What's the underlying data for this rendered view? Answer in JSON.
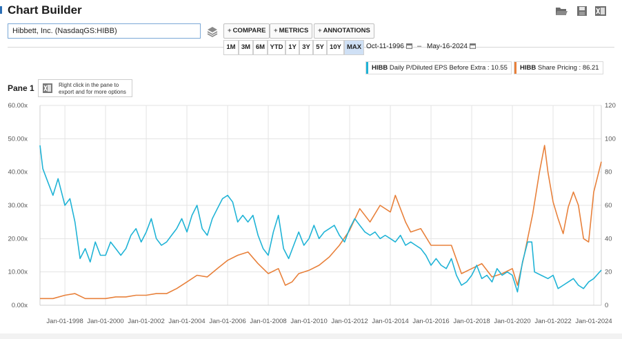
{
  "header": {
    "title": "Chart Builder"
  },
  "icons": {
    "open": "folder-open-icon",
    "save": "save-icon",
    "excel": "excel-icon",
    "layers": "layers-icon"
  },
  "search": {
    "value": "Hibbett, Inc. (NasdaqGS:HIBB)"
  },
  "toolbar": {
    "compare": "COMPARE",
    "metrics": "METRICS",
    "annotations": "ANNOTATIONS"
  },
  "ranges": [
    "1M",
    "3M",
    "6M",
    "YTD",
    "1Y",
    "3Y",
    "5Y",
    "10Y",
    "MAX"
  ],
  "active_range": "MAX",
  "dates": {
    "start": "Oct-11-1996",
    "end": "May-16-2024"
  },
  "legend": [
    {
      "ticker": "HIBB",
      "label": "Daily P/Diluted EPS Before Extra : 10.55",
      "color": "#1fb3d6"
    },
    {
      "ticker": "HIBB",
      "label": "Share Pricing : 86.21",
      "color": "#e8803a"
    }
  ],
  "pane": {
    "title": "Pane 1",
    "hint": "Right click in the pane to export and for more options"
  },
  "chart_data": {
    "type": "line",
    "y_left": {
      "ticks": [
        "60.00x",
        "50.00x",
        "40.00x",
        "30.00x",
        "20.00x",
        "10.00x",
        "0.00x"
      ],
      "range": [
        0,
        60
      ]
    },
    "y_right": {
      "ticks": [
        "120",
        "100",
        "80",
        "60",
        "40",
        "20",
        "0"
      ],
      "range": [
        0,
        120
      ]
    },
    "x_ticks": [
      "Jan-01-1998",
      "Jan-01-2000",
      "Jan-01-2002",
      "Jan-01-2004",
      "Jan-01-2006",
      "Jan-01-2008",
      "Jan-01-2010",
      "Jan-01-2012",
      "Jan-01-2014",
      "Jan-01-2016",
      "Jan-01-2018",
      "Jan-01-2020",
      "Jan-01-2022",
      "Jan-01-2024"
    ],
    "x_range": [
      "1996-10-11",
      "2024-05-16"
    ],
    "grid": true,
    "series": [
      {
        "name": "HIBB Daily P/Diluted EPS Before Extra",
        "axis": "left",
        "color": "#1fb3d6",
        "points": [
          [
            "1996-10-11",
            48
          ],
          [
            "1996-12-01",
            41
          ],
          [
            "1997-03-01",
            37
          ],
          [
            "1997-06-01",
            33
          ],
          [
            "1997-09-01",
            38
          ],
          [
            "1998-01-01",
            30
          ],
          [
            "1998-04-01",
            32
          ],
          [
            "1998-07-01",
            25
          ],
          [
            "1998-10-01",
            14
          ],
          [
            "1999-01-01",
            17
          ],
          [
            "1999-04-01",
            13
          ],
          [
            "1999-07-01",
            19
          ],
          [
            "1999-10-01",
            15
          ],
          [
            "2000-01-01",
            15
          ],
          [
            "2000-04-01",
            19
          ],
          [
            "2000-07-01",
            17
          ],
          [
            "2000-10-01",
            15
          ],
          [
            "2001-01-01",
            17
          ],
          [
            "2001-04-01",
            21
          ],
          [
            "2001-07-01",
            23
          ],
          [
            "2001-10-01",
            19
          ],
          [
            "2002-01-01",
            22
          ],
          [
            "2002-04-01",
            26
          ],
          [
            "2002-07-01",
            20
          ],
          [
            "2002-10-01",
            18
          ],
          [
            "2003-01-01",
            19
          ],
          [
            "2003-04-01",
            21
          ],
          [
            "2003-07-01",
            23
          ],
          [
            "2003-10-01",
            26
          ],
          [
            "2004-01-01",
            22
          ],
          [
            "2004-04-01",
            27
          ],
          [
            "2004-07-01",
            30
          ],
          [
            "2004-10-01",
            23
          ],
          [
            "2005-01-01",
            21
          ],
          [
            "2005-04-01",
            26
          ],
          [
            "2005-07-01",
            29
          ],
          [
            "2005-10-01",
            32
          ],
          [
            "2006-01-01",
            33
          ],
          [
            "2006-04-01",
            31
          ],
          [
            "2006-07-01",
            25
          ],
          [
            "2006-10-01",
            27
          ],
          [
            "2007-01-01",
            25
          ],
          [
            "2007-04-01",
            27
          ],
          [
            "2007-07-01",
            21
          ],
          [
            "2007-10-01",
            17
          ],
          [
            "2008-01-01",
            15
          ],
          [
            "2008-04-01",
            22
          ],
          [
            "2008-07-01",
            27
          ],
          [
            "2008-10-01",
            17
          ],
          [
            "2009-01-01",
            14
          ],
          [
            "2009-04-01",
            18
          ],
          [
            "2009-07-01",
            22
          ],
          [
            "2009-10-01",
            18
          ],
          [
            "2010-01-01",
            20
          ],
          [
            "2010-04-01",
            24
          ],
          [
            "2010-07-01",
            20
          ],
          [
            "2010-10-01",
            22
          ],
          [
            "2011-01-01",
            23
          ],
          [
            "2011-04-01",
            24
          ],
          [
            "2011-07-01",
            21
          ],
          [
            "2011-10-01",
            19
          ],
          [
            "2012-01-01",
            23
          ],
          [
            "2012-04-01",
            26
          ],
          [
            "2012-07-01",
            24
          ],
          [
            "2012-10-01",
            22
          ],
          [
            "2013-01-01",
            21
          ],
          [
            "2013-04-01",
            22
          ],
          [
            "2013-07-01",
            20
          ],
          [
            "2013-10-01",
            21
          ],
          [
            "2014-01-01",
            20
          ],
          [
            "2014-04-01",
            19
          ],
          [
            "2014-07-01",
            21
          ],
          [
            "2014-10-01",
            18
          ],
          [
            "2015-01-01",
            19
          ],
          [
            "2015-04-01",
            18
          ],
          [
            "2015-07-01",
            17
          ],
          [
            "2015-10-01",
            15
          ],
          [
            "2016-01-01",
            12
          ],
          [
            "2016-04-01",
            14
          ],
          [
            "2016-07-01",
            12
          ],
          [
            "2016-10-01",
            11
          ],
          [
            "2017-01-01",
            14
          ],
          [
            "2017-04-01",
            9
          ],
          [
            "2017-07-01",
            6
          ],
          [
            "2017-10-01",
            7
          ],
          [
            "2018-01-01",
            9
          ],
          [
            "2018-04-01",
            12
          ],
          [
            "2018-07-01",
            8
          ],
          [
            "2018-10-01",
            9
          ],
          [
            "2019-01-01",
            7
          ],
          [
            "2019-04-01",
            11
          ],
          [
            "2019-07-01",
            9
          ],
          [
            "2019-10-01",
            10
          ],
          [
            "2020-01-01",
            9
          ],
          [
            "2020-04-01",
            4
          ],
          [
            "2020-07-01",
            13
          ],
          [
            "2020-10-01",
            19
          ],
          [
            "2020-12-15",
            19
          ],
          [
            "2021-02-01",
            10
          ],
          [
            "2021-06-01",
            9
          ],
          [
            "2021-10-01",
            8
          ],
          [
            "2022-01-01",
            9
          ],
          [
            "2022-04-01",
            5
          ],
          [
            "2022-07-01",
            6
          ],
          [
            "2022-10-01",
            7
          ],
          [
            "2023-01-01",
            8
          ],
          [
            "2023-04-01",
            6
          ],
          [
            "2023-07-01",
            5
          ],
          [
            "2023-10-01",
            7
          ],
          [
            "2024-01-01",
            8
          ],
          [
            "2024-05-16",
            10.55
          ]
        ]
      },
      {
        "name": "HIBB Share Pricing",
        "axis": "right",
        "color": "#e8803a",
        "points": [
          [
            "1996-10-11",
            4
          ],
          [
            "1997-06-01",
            4
          ],
          [
            "1998-01-01",
            6
          ],
          [
            "1998-07-01",
            7
          ],
          [
            "1999-01-01",
            4
          ],
          [
            "1999-07-01",
            4
          ],
          [
            "2000-01-01",
            4
          ],
          [
            "2000-07-01",
            5
          ],
          [
            "2001-01-01",
            5
          ],
          [
            "2001-07-01",
            6
          ],
          [
            "2002-01-01",
            6
          ],
          [
            "2002-07-01",
            7
          ],
          [
            "2003-01-01",
            7
          ],
          [
            "2003-07-01",
            10
          ],
          [
            "2004-01-01",
            14
          ],
          [
            "2004-07-01",
            18
          ],
          [
            "2005-01-01",
            17
          ],
          [
            "2005-07-01",
            22
          ],
          [
            "2006-01-01",
            27
          ],
          [
            "2006-07-01",
            30
          ],
          [
            "2007-01-01",
            32
          ],
          [
            "2007-07-01",
            25
          ],
          [
            "2008-01-01",
            19
          ],
          [
            "2008-07-01",
            22
          ],
          [
            "2008-11-01",
            12
          ],
          [
            "2009-03-01",
            14
          ],
          [
            "2009-07-01",
            19
          ],
          [
            "2010-01-01",
            21
          ],
          [
            "2010-07-01",
            24
          ],
          [
            "2011-01-01",
            29
          ],
          [
            "2011-07-01",
            36
          ],
          [
            "2012-01-01",
            45
          ],
          [
            "2012-07-01",
            58
          ],
          [
            "2013-01-01",
            50
          ],
          [
            "2013-07-01",
            60
          ],
          [
            "2014-01-01",
            56
          ],
          [
            "2014-04-01",
            66
          ],
          [
            "2014-10-01",
            50
          ],
          [
            "2015-01-01",
            44
          ],
          [
            "2015-07-01",
            46
          ],
          [
            "2016-01-01",
            36
          ],
          [
            "2016-07-01",
            36
          ],
          [
            "2017-01-01",
            36
          ],
          [
            "2017-07-01",
            19
          ],
          [
            "2018-01-01",
            22
          ],
          [
            "2018-07-01",
            25
          ],
          [
            "2019-01-01",
            17
          ],
          [
            "2019-07-01",
            19
          ],
          [
            "2020-01-01",
            22
          ],
          [
            "2020-04-01",
            12
          ],
          [
            "2020-08-01",
            30
          ],
          [
            "2021-01-01",
            55
          ],
          [
            "2021-05-01",
            80
          ],
          [
            "2021-08-01",
            96
          ],
          [
            "2021-10-01",
            80
          ],
          [
            "2022-01-01",
            62
          ],
          [
            "2022-04-01",
            52
          ],
          [
            "2022-07-01",
            43
          ],
          [
            "2022-10-01",
            59
          ],
          [
            "2023-01-01",
            68
          ],
          [
            "2023-04-01",
            60
          ],
          [
            "2023-07-01",
            40
          ],
          [
            "2023-10-01",
            38
          ],
          [
            "2024-01-01",
            68
          ],
          [
            "2024-05-16",
            86.21
          ]
        ]
      }
    ]
  }
}
